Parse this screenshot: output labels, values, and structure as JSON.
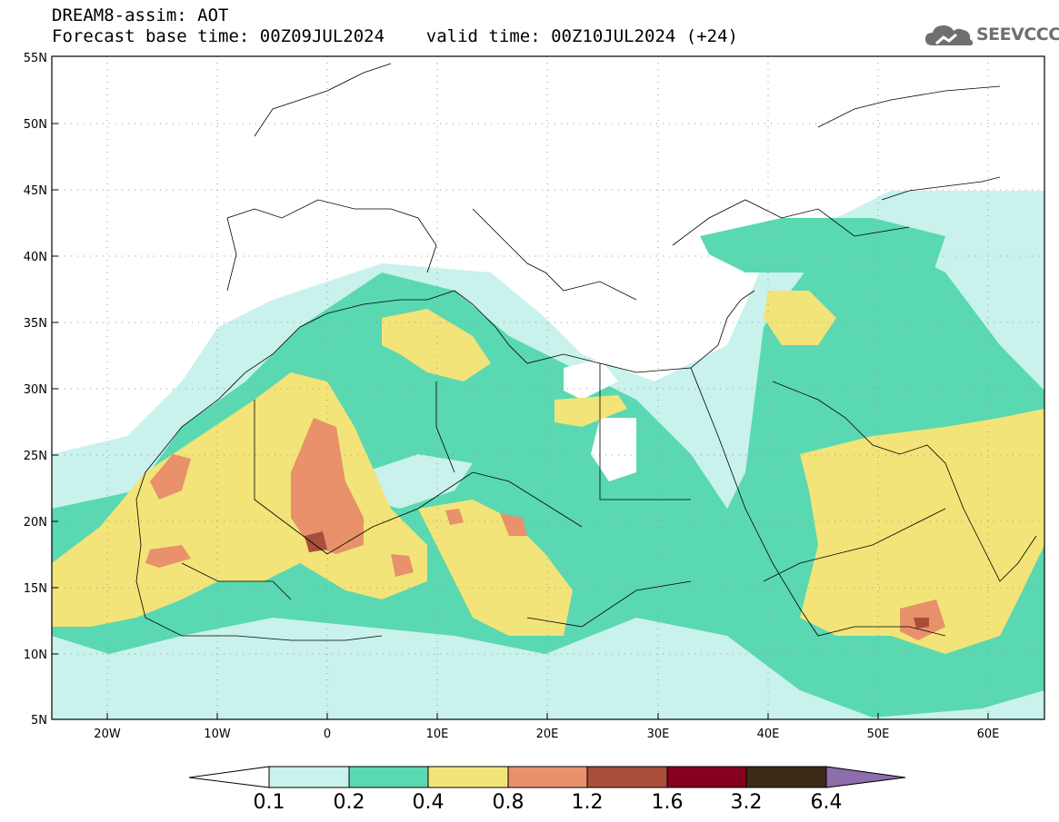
{
  "header": {
    "title": "DREAM8-assim: AOT",
    "subtitle": "Forecast base time: 00Z09JUL2024    valid time: 00Z10JUL2024 (+24)"
  },
  "logo": {
    "text": "SEEVCCC",
    "icon": "cloud-icon"
  },
  "map": {
    "lon_range": [
      -25,
      65
    ],
    "lat_range": [
      5,
      55
    ],
    "lat_ticks": [
      "5N",
      "10N",
      "15N",
      "20N",
      "25N",
      "30N",
      "35N",
      "40N",
      "45N",
      "50N",
      "55N"
    ],
    "lon_ticks": [
      "20W",
      "10W",
      "0",
      "10E",
      "20E",
      "30E",
      "40E",
      "50E",
      "60E"
    ],
    "grid": "dotted"
  },
  "colorbar": {
    "labels": [
      "0.1",
      "0.2",
      "0.4",
      "0.8",
      "1.2",
      "1.6",
      "3.2",
      "6.4"
    ],
    "colors": [
      "#c8f2eb",
      "#5ad8b2",
      "#f2e478",
      "#e8916a",
      "#a84e3a",
      "#860020",
      "#3d2a17",
      "#8d6daa"
    ]
  }
}
